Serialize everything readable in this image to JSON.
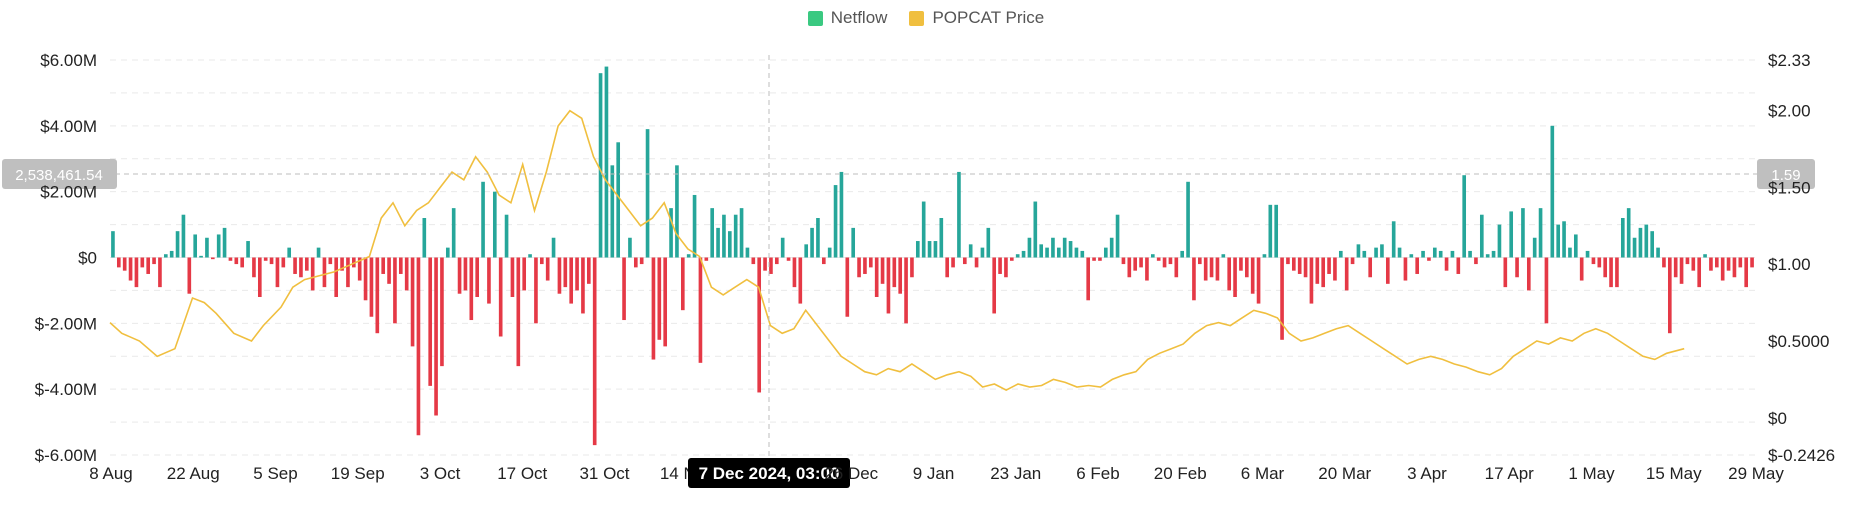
{
  "colors": {
    "netflow_pos": "#26a69a",
    "netflow_neg": "#e53946",
    "price": "#f0bf3f",
    "grid": "#e9e9e9",
    "crosshair": "#bdbdbd",
    "badge_bg": "#bfbfbf",
    "x_badge_bg": "#000000"
  },
  "legend": [
    {
      "label": "Netflow",
      "color": "#3ac981"
    },
    {
      "label": "POPCAT Price",
      "color": "#f0bf3f"
    }
  ],
  "chart_data": {
    "type": "bar",
    "x_tick_labels": [
      "8 Aug",
      "22 Aug",
      "5 Sep",
      "19 Sep",
      "3 Oct",
      "17 Oct",
      "31 Oct",
      "14 Nov",
      "7 Dec 2024, 03:00",
      "26 Dec",
      "9 Jan",
      "23 Jan",
      "6 Feb",
      "20 Feb",
      "6 Mar",
      "20 Mar",
      "3 Apr",
      "17 Apr",
      "1 May",
      "15 May",
      "29 May"
    ],
    "y_left_ticks": [
      "$6.00M",
      "$4.00M",
      "$2.00M",
      "$0",
      "$-2.00M",
      "$-4.00M",
      "$-6.00M"
    ],
    "y_right_ticks": [
      "$2.33",
      "$2.00",
      "$1.50",
      "$1.00",
      "$0.5000",
      "$0",
      "$-0.2426"
    ],
    "left_axis_range": [
      -6000000,
      6000000
    ],
    "right_axis_range": [
      -0.2426,
      2.33
    ],
    "hover": {
      "x_label": "7 Dec 2024, 03:00",
      "left_value": "2,538,461.54",
      "right_value": "1.59"
    },
    "series": [
      {
        "name": "Netflow",
        "values": [
          0.8,
          -0.3,
          -0.4,
          -0.7,
          -0.9,
          -0.3,
          -0.5,
          -0.2,
          -0.9,
          0.1,
          0.2,
          0.8,
          1.3,
          -1.1,
          0.7,
          0.05,
          0.6,
          -0.05,
          0.7,
          0.9,
          -0.1,
          -0.2,
          -0.3,
          0.5,
          -0.6,
          -1.2,
          -0.1,
          -0.2,
          -0.9,
          -0.3,
          0.3,
          -0.5,
          -0.6,
          -0.4,
          -1.0,
          0.3,
          -0.9,
          -0.2,
          -1.2,
          -0.4,
          -0.9,
          -0.3,
          -0.7,
          -1.3,
          -1.8,
          -2.3,
          -0.5,
          -0.8,
          -2.0,
          -0.5,
          -1.0,
          -2.7,
          -5.4,
          1.2,
          -3.9,
          -4.8,
          -3.3,
          0.3,
          1.5,
          -1.1,
          -1.0,
          -1.9,
          -1.2,
          2.3,
          -1.4,
          2.0,
          -2.4,
          1.3,
          -1.2,
          -3.3,
          -1.0,
          0.1,
          -2.0,
          -0.2,
          -0.7,
          0.6,
          -1.1,
          -0.9,
          -1.4,
          -1.0,
          -1.7,
          -0.8,
          -5.7,
          5.6,
          5.8,
          2.8,
          3.5,
          -1.9,
          0.6,
          -0.3,
          -0.2,
          3.9,
          -3.1,
          -2.5,
          -2.7,
          1.5,
          2.8,
          -1.6,
          0.1,
          1.9,
          -3.2,
          -0.1,
          1.5,
          0.9,
          1.3,
          0.8,
          1.3,
          1.5,
          0.3,
          -0.2,
          -4.1,
          -0.4,
          -0.5,
          -0.2,
          0.6,
          -0.1,
          -0.9,
          -1.4,
          0.4,
          0.9,
          1.2,
          -0.2,
          0.3,
          2.2,
          2.6,
          -1.8,
          0.9,
          -0.6,
          -0.5,
          -0.3,
          -1.2,
          -0.8,
          -1.7,
          -0.9,
          -1.1,
          -2.0,
          -0.6,
          0.5,
          1.7,
          0.5,
          0.5,
          1.2,
          -0.6,
          -0.3,
          2.6,
          -0.2,
          0.4,
          -0.3,
          0.3,
          0.9,
          -1.7,
          -0.5,
          -0.6,
          -0.1,
          0.1,
          0.2,
          0.6,
          1.7,
          0.4,
          0.3,
          0.6,
          0.3,
          0.6,
          0.5,
          0.3,
          0.2,
          -1.3,
          -0.1,
          -0.1,
          0.3,
          0.6,
          1.3,
          -0.2,
          -0.6,
          -0.4,
          -0.3,
          -0.7,
          0.1,
          -0.1,
          -0.3,
          -0.2,
          -0.6,
          0.2,
          2.3,
          -1.3,
          -0.2,
          -0.7,
          -0.6,
          -0.7,
          0.1,
          -1.0,
          -1.2,
          -0.4,
          -0.6,
          -1.1,
          -1.4,
          0.1,
          1.6,
          1.6,
          -2.5,
          -0.2,
          -0.4,
          -0.5,
          -0.6,
          -1.4,
          -0.8,
          -0.9,
          -0.5,
          -0.7,
          0.2,
          -1.0,
          -0.2,
          0.4,
          0.2,
          -0.6,
          0.3,
          0.4,
          -0.8,
          1.1,
          0.3,
          -0.7,
          0.1,
          -0.5,
          0.2,
          -0.1,
          0.3,
          0.2,
          -0.4,
          0.2,
          -0.5,
          2.5,
          0.2,
          -0.2,
          1.3,
          0.1,
          0.2,
          1.0,
          -0.9,
          1.4,
          -0.6,
          1.5,
          -1.0,
          0.6,
          1.5,
          -2.0,
          4.0,
          1.0,
          1.1,
          0.3,
          0.7,
          -0.7,
          0.2,
          -0.2,
          -0.3,
          -0.6,
          -0.9,
          -0.9,
          1.2,
          1.5,
          0.6,
          0.9,
          1.0,
          0.8,
          0.3,
          -0.3,
          -2.3,
          -0.6,
          -0.8,
          -0.2,
          -0.4,
          -0.9,
          0.1,
          -0.4,
          -0.3,
          -0.7,
          -0.4,
          -0.6,
          -0.3,
          -0.9,
          -0.3
        ]
      },
      {
        "name": "POPCAT Price",
        "points": [
          [
            0,
            0.62
          ],
          [
            2,
            0.55
          ],
          [
            5,
            0.5
          ],
          [
            8,
            0.4
          ],
          [
            11,
            0.45
          ],
          [
            14,
            0.78
          ],
          [
            16,
            0.75
          ],
          [
            18,
            0.68
          ],
          [
            21,
            0.55
          ],
          [
            24,
            0.5
          ],
          [
            26,
            0.6
          ],
          [
            29,
            0.72
          ],
          [
            31,
            0.85
          ],
          [
            33,
            0.9
          ],
          [
            35,
            0.92
          ],
          [
            38,
            0.95
          ],
          [
            41,
            1.0
          ],
          [
            44,
            1.05
          ],
          [
            46,
            1.3
          ],
          [
            48,
            1.4
          ],
          [
            50,
            1.25
          ],
          [
            52,
            1.35
          ],
          [
            54,
            1.4
          ],
          [
            56,
            1.5
          ],
          [
            58,
            1.6
          ],
          [
            60,
            1.55
          ],
          [
            62,
            1.7
          ],
          [
            64,
            1.6
          ],
          [
            66,
            1.45
          ],
          [
            68,
            1.4
          ],
          [
            70,
            1.65
          ],
          [
            72,
            1.35
          ],
          [
            74,
            1.6
          ],
          [
            76,
            1.9
          ],
          [
            78,
            2.0
          ],
          [
            80,
            1.95
          ],
          [
            82,
            1.7
          ],
          [
            84,
            1.55
          ],
          [
            86,
            1.45
          ],
          [
            88,
            1.35
          ],
          [
            90,
            1.25
          ],
          [
            92,
            1.3
          ],
          [
            94,
            1.4
          ],
          [
            96,
            1.2
          ],
          [
            98,
            1.1
          ],
          [
            100,
            1.05
          ],
          [
            102,
            0.85
          ],
          [
            104,
            0.8
          ],
          [
            106,
            0.85
          ],
          [
            108,
            0.9
          ],
          [
            110,
            0.85
          ],
          [
            112,
            0.6
          ],
          [
            114,
            0.55
          ],
          [
            116,
            0.58
          ],
          [
            118,
            0.7
          ],
          [
            120,
            0.6
          ],
          [
            122,
            0.5
          ],
          [
            124,
            0.4
          ],
          [
            126,
            0.35
          ],
          [
            128,
            0.3
          ],
          [
            130,
            0.28
          ],
          [
            132,
            0.32
          ],
          [
            134,
            0.3
          ],
          [
            136,
            0.35
          ],
          [
            138,
            0.3
          ],
          [
            140,
            0.25
          ],
          [
            142,
            0.28
          ],
          [
            144,
            0.3
          ],
          [
            146,
            0.27
          ],
          [
            148,
            0.2
          ],
          [
            150,
            0.22
          ],
          [
            152,
            0.18
          ],
          [
            154,
            0.22
          ],
          [
            156,
            0.2
          ],
          [
            158,
            0.21
          ],
          [
            160,
            0.25
          ],
          [
            162,
            0.23
          ],
          [
            164,
            0.2
          ],
          [
            166,
            0.21
          ],
          [
            168,
            0.2
          ],
          [
            170,
            0.25
          ],
          [
            172,
            0.28
          ],
          [
            174,
            0.3
          ],
          [
            176,
            0.38
          ],
          [
            178,
            0.42
          ],
          [
            180,
            0.45
          ],
          [
            182,
            0.48
          ],
          [
            184,
            0.55
          ],
          [
            186,
            0.6
          ],
          [
            188,
            0.62
          ],
          [
            190,
            0.6
          ],
          [
            192,
            0.65
          ],
          [
            194,
            0.7
          ],
          [
            196,
            0.68
          ],
          [
            198,
            0.65
          ],
          [
            200,
            0.55
          ],
          [
            202,
            0.5
          ],
          [
            204,
            0.52
          ],
          [
            206,
            0.55
          ],
          [
            208,
            0.58
          ],
          [
            210,
            0.6
          ],
          [
            212,
            0.55
          ],
          [
            214,
            0.5
          ],
          [
            216,
            0.45
          ],
          [
            218,
            0.4
          ],
          [
            220,
            0.35
          ],
          [
            222,
            0.38
          ],
          [
            224,
            0.4
          ],
          [
            226,
            0.38
          ],
          [
            228,
            0.35
          ],
          [
            230,
            0.33
          ],
          [
            232,
            0.3
          ],
          [
            234,
            0.28
          ],
          [
            236,
            0.32
          ],
          [
            238,
            0.4
          ],
          [
            240,
            0.45
          ],
          [
            242,
            0.5
          ],
          [
            244,
            0.48
          ],
          [
            246,
            0.52
          ],
          [
            248,
            0.5
          ],
          [
            250,
            0.55
          ],
          [
            252,
            0.58
          ],
          [
            254,
            0.55
          ],
          [
            256,
            0.5
          ],
          [
            258,
            0.45
          ],
          [
            260,
            0.4
          ],
          [
            262,
            0.38
          ],
          [
            264,
            0.42
          ],
          [
            267,
            0.45
          ]
        ]
      }
    ]
  }
}
